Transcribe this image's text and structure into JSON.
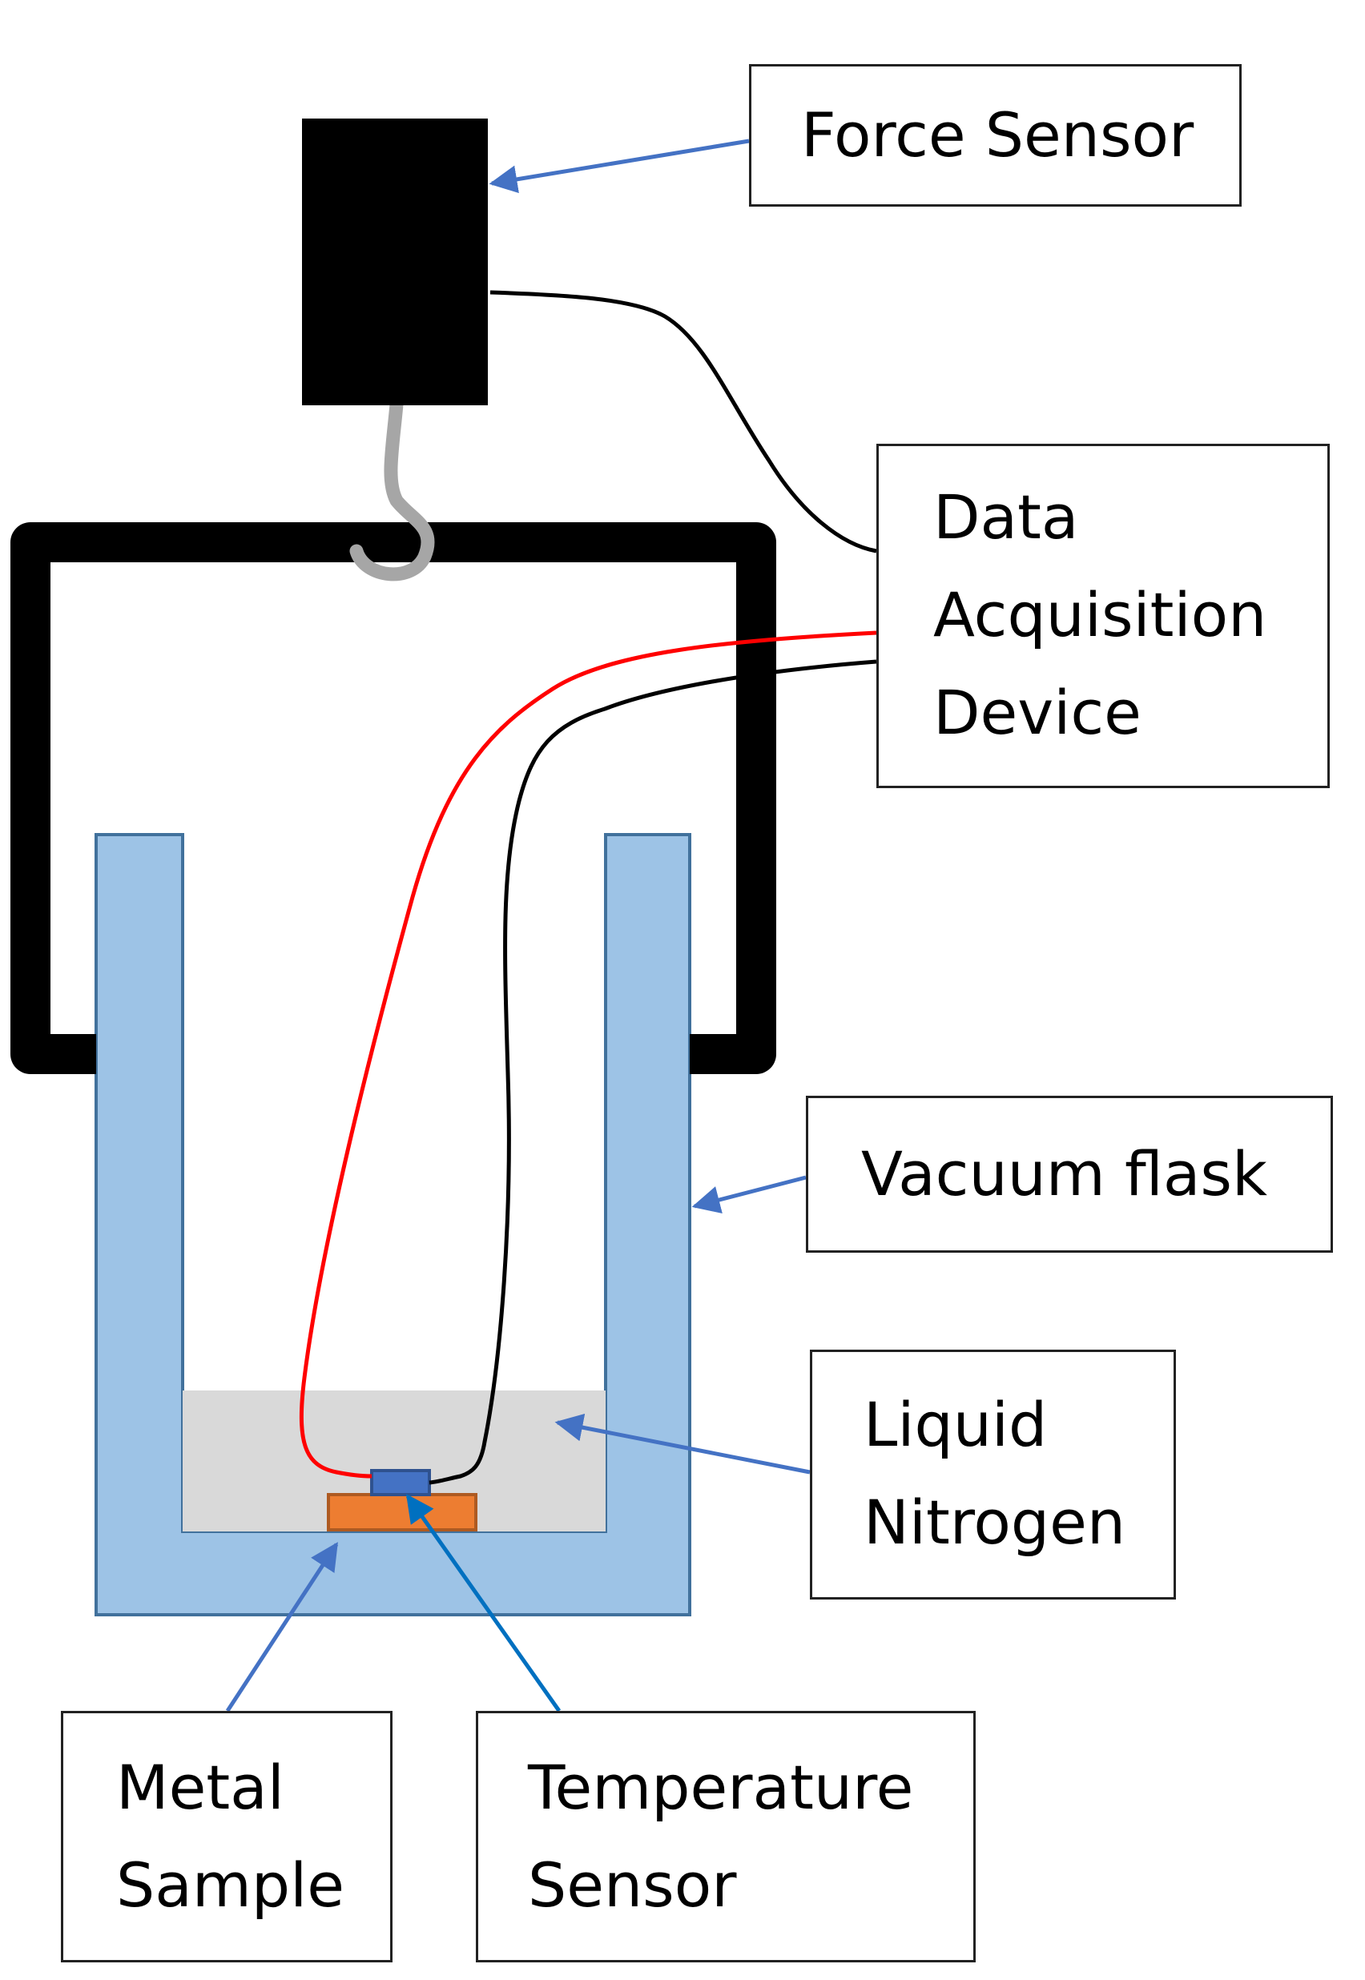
{
  "labels": {
    "force_sensor": "Force Sensor",
    "data_acquisition_device": [
      "Data",
      "Acquisition",
      "Device"
    ],
    "vacuum_flask": "Vacuum flask",
    "liquid_nitrogen": [
      "Liquid",
      "Nitrogen"
    ],
    "metal_sample": [
      "Metal",
      "Sample"
    ],
    "temperature_sensor": [
      "Temperature",
      "Sensor"
    ]
  },
  "colors": {
    "flask": "#9DC3E6",
    "flask_border": "#41719C",
    "liquid_nitrogen": "#D9D9D9",
    "metal_sample": "#ED7D31",
    "metal_sample_border": "#AE5A21",
    "temperature_sensor": "#4472C4",
    "temperature_sensor_border": "#2F528F",
    "arrow": "#4472C4",
    "arrow_dark": "#0070C0",
    "red_wire": "#FF0000",
    "black_wire": "#000000",
    "hook": "#A6A6A6",
    "frame": "#000000"
  }
}
